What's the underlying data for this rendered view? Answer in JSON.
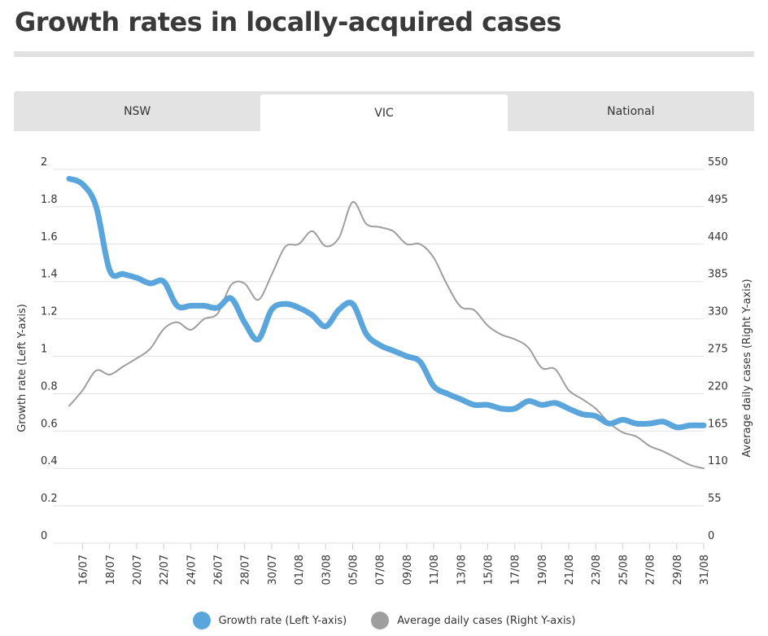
{
  "header": {
    "title": "Growth rates in locally-acquired cases"
  },
  "tabs": [
    {
      "label": "NSW",
      "active": false
    },
    {
      "label": "VIC",
      "active": true
    },
    {
      "label": "National",
      "active": false
    }
  ],
  "legend": [
    {
      "label": "Growth rate (Left Y-axis)",
      "color": "#5aa5dc"
    },
    {
      "label": "Average daily cases (Right Y-axis)",
      "color": "#9e9e9e"
    }
  ],
  "chart_data": {
    "type": "line",
    "title": "Growth rates in locally-acquired cases",
    "ylabel_left": "Growth rate (Left Y-axis)",
    "ylabel_right": "Average daily cases (Right Y-axis)",
    "y_left_range": [
      0,
      2
    ],
    "y_left_ticks": [
      "0",
      "0.2",
      "0.4",
      "0.6",
      "0.8",
      "1",
      "1.2",
      "1.4",
      "1.6",
      "1.8",
      "2"
    ],
    "y_right_range": [
      0,
      550
    ],
    "y_right_ticks": [
      "0",
      "55",
      "110",
      "165",
      "220",
      "275",
      "330",
      "385",
      "440",
      "495",
      "550"
    ],
    "x_tick_labels": [
      "16/07",
      "18/07",
      "20/07",
      "22/07",
      "24/07",
      "26/07",
      "28/07",
      "30/07",
      "01/08",
      "03/08",
      "05/08",
      "07/08",
      "09/08",
      "11/08",
      "13/08",
      "15/08",
      "17/08",
      "19/08",
      "21/08",
      "23/08",
      "25/08",
      "27/08",
      "29/08",
      "31/08"
    ],
    "x_dates": [
      "15/07",
      "16/07",
      "17/07",
      "18/07",
      "19/07",
      "20/07",
      "21/07",
      "22/07",
      "23/07",
      "24/07",
      "25/07",
      "26/07",
      "27/07",
      "28/07",
      "29/07",
      "30/07",
      "31/07",
      "01/08",
      "02/08",
      "03/08",
      "04/08",
      "05/08",
      "06/08",
      "07/08",
      "08/08",
      "09/08",
      "10/08",
      "11/08",
      "12/08",
      "13/08",
      "14/08",
      "15/08",
      "16/08",
      "17/08",
      "18/08",
      "19/08",
      "20/08",
      "21/08",
      "22/08",
      "23/08",
      "24/08",
      "25/08",
      "26/08",
      "27/08",
      "28/08",
      "29/08",
      "30/08",
      "31/08"
    ],
    "grid": true,
    "legend_position": "bottom",
    "series": [
      {
        "name": "Growth rate (Left Y-axis)",
        "axis": "left",
        "color": "#5aa5dc",
        "values": [
          1.95,
          1.92,
          1.8,
          1.46,
          1.44,
          1.42,
          1.39,
          1.4,
          1.27,
          1.27,
          1.27,
          1.26,
          1.31,
          1.18,
          1.09,
          1.25,
          1.28,
          1.26,
          1.22,
          1.16,
          1.25,
          1.28,
          1.12,
          1.06,
          1.03,
          1.0,
          0.97,
          0.84,
          0.8,
          0.77,
          0.74,
          0.74,
          0.72,
          0.72,
          0.76,
          0.74,
          0.75,
          0.72,
          0.69,
          0.68,
          0.64,
          0.66,
          0.64,
          0.64,
          0.65,
          0.62,
          0.63,
          0.63
        ]
      },
      {
        "name": "Average daily cases (Right Y-axis)",
        "axis": "right",
        "color": "#9e9e9e",
        "values": [
          202,
          225,
          254,
          248,
          260,
          272,
          286,
          315,
          325,
          314,
          330,
          338,
          380,
          382,
          358,
          395,
          436,
          440,
          459,
          437,
          450,
          502,
          470,
          465,
          459,
          440,
          440,
          420,
          380,
          348,
          343,
          320,
          307,
          300,
          288,
          258,
          256,
          225,
          212,
          198,
          177,
          163,
          157,
          143,
          135,
          125,
          115,
          110
        ]
      }
    ]
  }
}
